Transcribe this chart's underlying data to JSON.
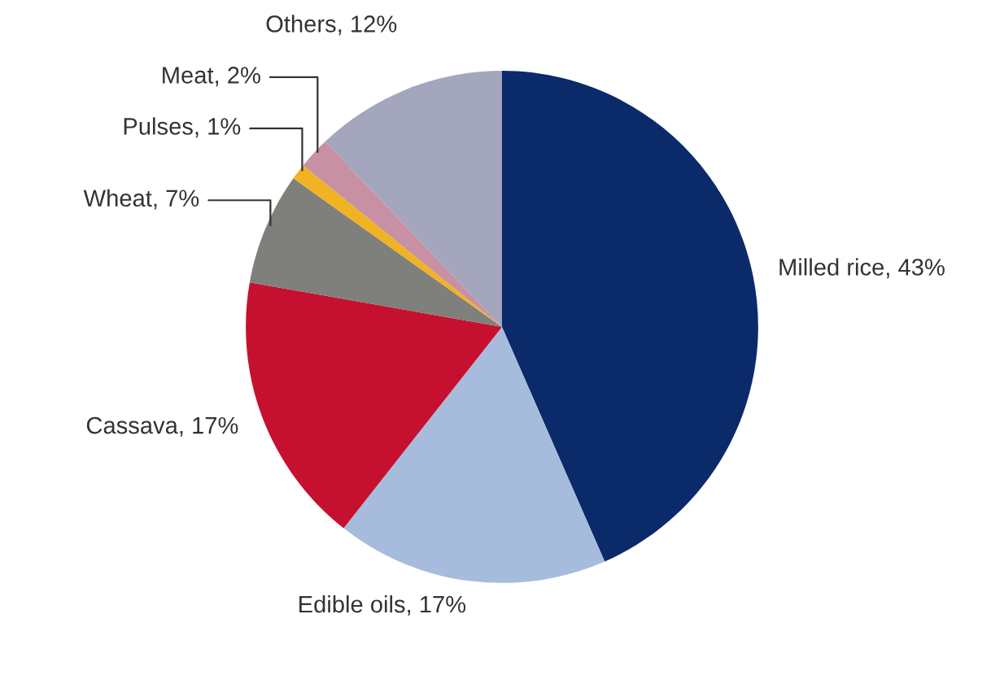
{
  "chart_data": {
    "type": "pie",
    "categories": [
      "Milled rice",
      "Edible oils",
      "Cassava",
      "Wheat",
      "Pulses",
      "Meat",
      "Others"
    ],
    "values": [
      43,
      17,
      17,
      7,
      1,
      2,
      12
    ],
    "colors": [
      "#0b2a6a",
      "#a7bcdd",
      "#c6102f",
      "#7f7f7c",
      "#f0b323",
      "#c890a3",
      "#a4a6bd"
    ],
    "value_labels": [
      "43%",
      "17%",
      "17%",
      "7%",
      "1%",
      "2%",
      "12%"
    ],
    "legend": false
  }
}
